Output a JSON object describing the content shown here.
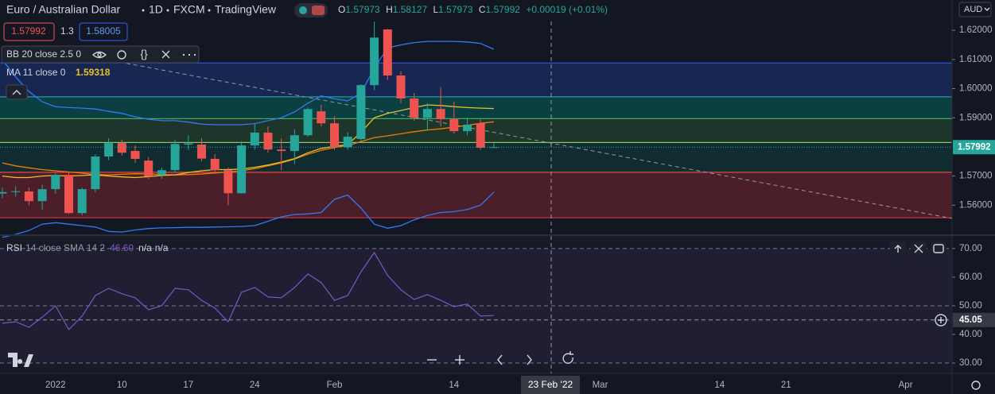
{
  "chart_data": {
    "type": "candlestick",
    "title": "Euro / Australian Dollar",
    "interval": "1D",
    "exchange": "FXCM",
    "source": "TradingView",
    "ohlc_labels": [
      "O",
      "H",
      "L",
      "C"
    ],
    "change_label": "+0.00019 (+0.01%)",
    "trade": {
      "sell": "1.57992",
      "spread": "1.3",
      "buy": "1.58005"
    },
    "currency": "AUD",
    "up_color": "#26a69a",
    "down_color": "#ef5350",
    "categories": [
      null,
      null,
      null,
      null,
      "2022",
      null,
      null,
      null,
      null,
      "10",
      null,
      null,
      null,
      null,
      "17",
      null,
      null,
      null,
      null,
      "24",
      null,
      null,
      null,
      null,
      null,
      "Feb",
      null,
      null,
      null,
      null,
      null,
      null,
      null,
      null,
      "14",
      null,
      null,
      null,
      null,
      null,
      null,
      null,
      null,
      null,
      null,
      "Mar",
      null,
      null,
      null,
      null,
      null,
      null,
      null,
      null,
      "14",
      null,
      null,
      null,
      null,
      "21",
      null,
      null,
      null,
      null,
      null,
      null,
      null,
      null,
      "Apr"
    ],
    "open": [
      1.564,
      1.5645,
      1.5647,
      1.5614,
      1.5655,
      1.5704,
      1.5573,
      1.5655,
      1.5767,
      1.5813,
      1.5786,
      1.5753,
      1.5704,
      1.572,
      1.5808,
      1.5808,
      1.5759,
      1.572,
      1.5641,
      1.5805,
      1.5849,
      1.5791,
      1.5786,
      1.584,
      1.5922,
      1.5881,
      1.5799,
      1.5827,
      1.6012,
      1.6203,
      1.6045,
      1.5966,
      1.59,
      1.593,
      1.5895,
      1.5854,
      1.5881,
      1.57973,
      null,
      null,
      null,
      null,
      null,
      null,
      null,
      null,
      null,
      null,
      null,
      null,
      null,
      null,
      null,
      null,
      null,
      null,
      null,
      null,
      null,
      null,
      null,
      null,
      null,
      null,
      null,
      null,
      null,
      null,
      null
    ],
    "high": [
      1.566,
      1.5665,
      1.566,
      1.567,
      1.571,
      1.5715,
      1.566,
      1.5775,
      1.583,
      1.5825,
      1.5805,
      1.5765,
      1.5728,
      1.5825,
      1.584,
      1.583,
      1.5775,
      1.573,
      1.582,
      1.588,
      1.587,
      1.583,
      1.586,
      1.5935,
      1.5945,
      1.5905,
      1.585,
      1.6015,
      1.623,
      1.6205,
      1.606,
      1.5985,
      1.595,
      1.6005,
      1.5955,
      1.59,
      1.5895,
      1.58127,
      null,
      null,
      null,
      null,
      null,
      null,
      null,
      null,
      null,
      null,
      null,
      null,
      null,
      null,
      null,
      null,
      null,
      null,
      null,
      null,
      null,
      null,
      null,
      null,
      null,
      null,
      null,
      null,
      null,
      null,
      null
    ],
    "low": [
      1.5625,
      1.563,
      1.56,
      1.5585,
      1.564,
      1.557,
      1.5565,
      1.5645,
      1.5755,
      1.577,
      1.5745,
      1.569,
      1.569,
      1.571,
      1.579,
      1.575,
      1.571,
      1.56,
      1.564,
      1.579,
      1.578,
      1.572,
      1.574,
      1.5835,
      1.587,
      1.579,
      1.579,
      1.582,
      1.5995,
      1.603,
      1.595,
      1.589,
      1.5855,
      1.587,
      1.5845,
      1.584,
      1.579,
      1.57973,
      null,
      null,
      null,
      null,
      null,
      null,
      null,
      null,
      null,
      null,
      null,
      null,
      null,
      null,
      null,
      null,
      null,
      null,
      null,
      null,
      null,
      null,
      null,
      null,
      null,
      null,
      null,
      null,
      null,
      null,
      null
    ],
    "close": [
      1.5645,
      1.5648,
      1.5614,
      1.5655,
      1.5704,
      1.5573,
      1.5655,
      1.5767,
      1.5813,
      1.578,
      1.5759,
      1.5699,
      1.572,
      1.581,
      1.5812,
      1.576,
      1.572,
      1.5641,
      1.5805,
      1.5849,
      1.5791,
      1.5786,
      1.584,
      1.593,
      1.5881,
      1.5799,
      1.5835,
      1.6012,
      1.6175,
      1.6045,
      1.5966,
      1.59,
      1.593,
      1.5895,
      1.5854,
      1.5876,
      1.5797,
      1.57992,
      null,
      null,
      null,
      null,
      null,
      null,
      null,
      null,
      null,
      null,
      null,
      null,
      null,
      null,
      null,
      null,
      null,
      null,
      null,
      null,
      null,
      null,
      null,
      null,
      null,
      null,
      null,
      null,
      null,
      null,
      null
    ],
    "bb": {
      "legend": "BB 20 close 2.5 0",
      "color": "#3179f5",
      "basis_color": "#f57c00",
      "upper": [
        1.6099,
        1.604,
        1.599,
        1.5955,
        1.5938,
        1.5935,
        1.5933,
        1.593,
        1.5922,
        1.5915,
        1.5903,
        1.5895,
        1.589,
        1.589,
        1.5885,
        1.5878,
        1.5876,
        1.5876,
        1.5876,
        1.588,
        1.589,
        1.59,
        1.592,
        1.595,
        1.5975,
        1.5965,
        1.5958,
        1.5985,
        1.607,
        1.614,
        1.615,
        1.6158,
        1.6162,
        1.6162,
        1.6162,
        1.616,
        1.6155,
        1.6135,
        null,
        null,
        null,
        null,
        null,
        null,
        null,
        null,
        null,
        null,
        null,
        null,
        null,
        null,
        null,
        null,
        null,
        null,
        null,
        null,
        null,
        null,
        null,
        null,
        null,
        null,
        null,
        null,
        null,
        null,
        null
      ],
      "basis": [
        1.5745,
        1.5735,
        1.5728,
        1.5722,
        1.5718,
        1.5714,
        1.571,
        1.5705,
        1.5704,
        1.5706,
        1.5708,
        1.5707,
        1.5705,
        1.5704,
        1.5705,
        1.5707,
        1.571,
        1.5714,
        1.5718,
        1.5725,
        1.5735,
        1.5745,
        1.5758,
        1.5775,
        1.5788,
        1.5798,
        1.5805,
        1.5818,
        1.5832,
        1.5838,
        1.5845,
        1.5852,
        1.5858,
        1.5862,
        1.5868,
        1.5874,
        1.5881,
        1.5886,
        null,
        null,
        null,
        null,
        null,
        null,
        null,
        null,
        null,
        null,
        null,
        null,
        null,
        null,
        null,
        null,
        null,
        null,
        null,
        null,
        null,
        null,
        null,
        null,
        null,
        null,
        null,
        null,
        null,
        null,
        null
      ],
      "lower": [
        1.549,
        1.55,
        1.5513,
        1.5535,
        1.554,
        1.5535,
        1.553,
        1.5525,
        1.551,
        1.5508,
        1.5515,
        1.552,
        1.5522,
        1.5523,
        1.5524,
        1.5524,
        1.5525,
        1.5526,
        1.5527,
        1.553,
        1.5545,
        1.556,
        1.5568,
        1.557,
        1.5575,
        1.562,
        1.5635,
        1.559,
        1.5535,
        1.5521,
        1.553,
        1.555,
        1.5565,
        1.5575,
        1.5578,
        1.5585,
        1.56,
        1.5645,
        null,
        null,
        null,
        null,
        null,
        null,
        null,
        null,
        null,
        null,
        null,
        null,
        null,
        null,
        null,
        null,
        null,
        null,
        null,
        null,
        null,
        null,
        null,
        null,
        null,
        null,
        null,
        null,
        null,
        null,
        null
      ]
    },
    "ma": {
      "legend": "MA 11 close 0",
      "color": "#e6c229",
      "values": [
        1.57,
        1.5695,
        1.5695,
        1.57,
        1.5702,
        1.57,
        1.5702,
        1.5704,
        1.57,
        1.5697,
        1.5695,
        1.5698,
        1.5702,
        1.5704,
        1.5712,
        1.5718,
        1.5722,
        1.5722,
        1.5724,
        1.573,
        1.5738,
        1.5748,
        1.576,
        1.578,
        1.5795,
        1.5802,
        1.5808,
        1.585,
        1.59,
        1.5915,
        1.5925,
        1.5935,
        1.5944,
        1.5942,
        1.5938,
        1.5935,
        1.5933,
        1.59318,
        null,
        null,
        null,
        null,
        null,
        null,
        null,
        null,
        null,
        null,
        null,
        null,
        null,
        null,
        null,
        null,
        null,
        null,
        null,
        null,
        null,
        null,
        null,
        null,
        null,
        null,
        null,
        null,
        null,
        null,
        null
      ]
    },
    "rsi": {
      "legend": "RSI",
      "params": "14 close SMA 14 2",
      "legend_value": "46.60",
      "extras": [
        "n/a",
        "n/a"
      ],
      "color": "#7e57c2",
      "axis": "y2",
      "levels": [
        70,
        50,
        30
      ],
      "values": [
        43.9,
        44.4,
        42.5,
        46.0,
        50.0,
        41.7,
        46.4,
        53.6,
        56.1,
        54.2,
        52.8,
        48.6,
        50.0,
        56.1,
        55.6,
        51.9,
        49.2,
        44.4,
        54.7,
        56.4,
        53.1,
        52.8,
        56.4,
        61.1,
        58.1,
        51.9,
        53.6,
        61.9,
        68.6,
        60.6,
        55.6,
        52.2,
        53.9,
        51.9,
        49.7,
        50.6,
        46.4,
        46.6,
        null,
        null,
        null,
        null,
        null,
        null,
        null,
        null,
        null,
        null,
        null,
        null,
        null,
        null,
        null,
        null,
        null,
        null,
        null,
        null,
        null,
        null,
        null,
        null,
        null,
        null,
        null,
        null,
        null,
        null,
        null
      ]
    },
    "zones": [
      {
        "from": 1.6088,
        "to": 1.5972,
        "color": "rgba(41,98,255,0.22)",
        "line": "#2962ff"
      },
      {
        "from": 1.5972,
        "to": 1.5897,
        "color": "rgba(0,137,123,0.35)",
        "line": "#26a69a"
      },
      {
        "from": 1.5897,
        "to": 1.5815,
        "color": "rgba(76,175,80,0.2)",
        "line": "#4caf50"
      },
      {
        "from": 1.5815,
        "to": 1.5713,
        "color": "rgba(8,153,129,0.16)",
        "line": "#9ccc65"
      },
      {
        "from": 1.5713,
        "to": 1.5557,
        "color": "rgba(242,54,69,0.25)",
        "line": "#f23645"
      }
    ],
    "ylim": [
      1.55,
      1.6304
    ],
    "yticks": [
      {
        "value": 1.56,
        "label": "1.56000"
      },
      {
        "value": 1.57,
        "label": "1.57000"
      },
      {
        "value": 1.59,
        "label": "1.59000"
      },
      {
        "value": 1.6,
        "label": "1.60000"
      },
      {
        "value": 1.61,
        "label": "1.61000"
      },
      {
        "value": 1.62,
        "label": "1.62000"
      }
    ],
    "y2lim": [
      26.4,
      74.4
    ],
    "y2ticks": [
      {
        "value": 30,
        "label": "30.00"
      },
      {
        "value": 40,
        "label": "40.00"
      },
      {
        "value": 50,
        "label": "50.00"
      },
      {
        "value": 60,
        "label": "60.00"
      },
      {
        "value": 70,
        "label": "70.00"
      }
    ],
    "crosshair": {
      "x_label": "23 Feb '22",
      "y2": 45.05
    },
    "grid": false
  }
}
